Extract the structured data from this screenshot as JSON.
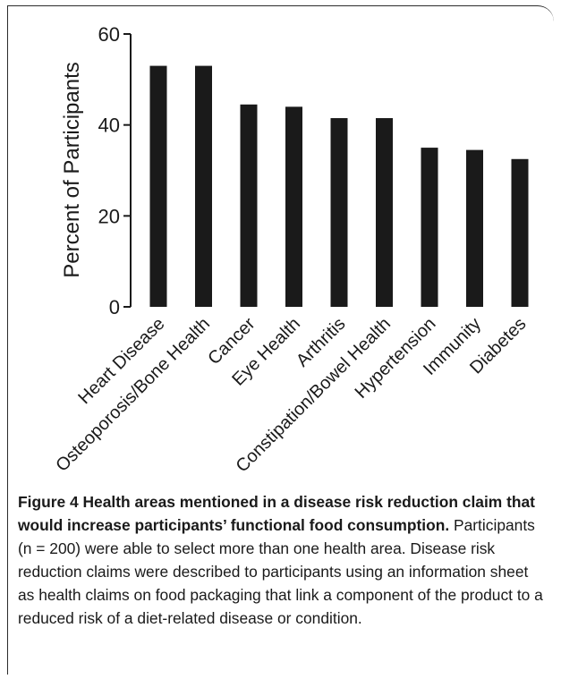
{
  "chart_data": {
    "type": "bar",
    "ylabel": "Percent of Participants",
    "ylim": [
      0,
      60
    ],
    "yticks": [
      0,
      20,
      40,
      60
    ],
    "categories": [
      "Heart Disease",
      "Osteoporosis/Bone Health",
      "Cancer",
      "Eye Health",
      "Arthritis",
      "Constipation/Bowel Health",
      "Hypertension",
      "Immunity",
      "Diabetes"
    ],
    "values": [
      53,
      53,
      44.5,
      44,
      41.5,
      41.5,
      35,
      34.5,
      32.5
    ],
    "bar_color": "#1a1a1a"
  },
  "caption": {
    "label": "Figure 4",
    "title": "Health areas mentioned in a disease risk reduction claim that would increase participants’ functional food consumption.",
    "text": "Participants (n = 200) were able to select more than one health area. Disease risk reduction claims were described to participants using an information sheet as health claims on food packaging that link a component of the product to a reduced risk of a diet-related disease or condition."
  }
}
